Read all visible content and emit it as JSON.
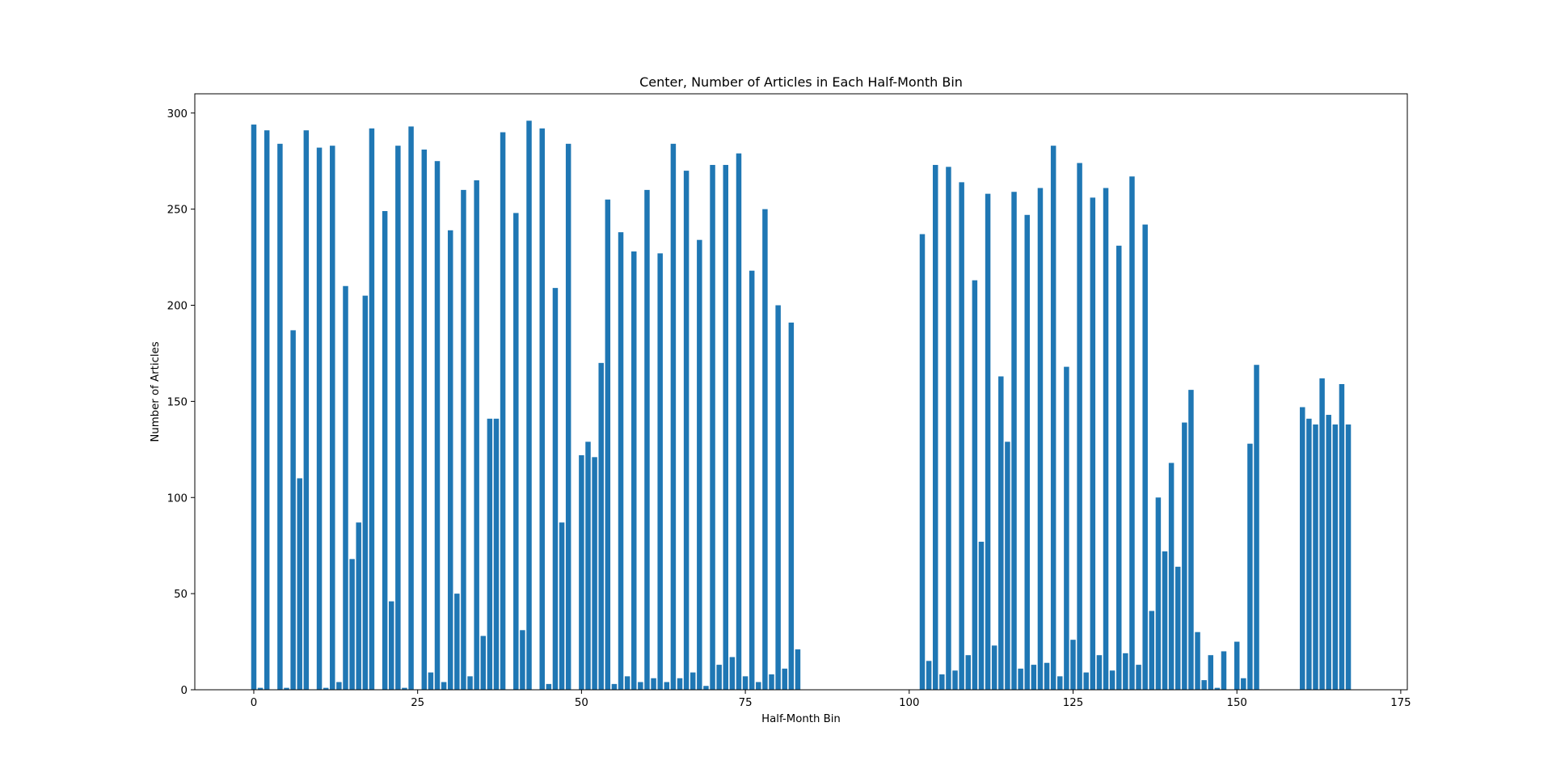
{
  "chart_data": {
    "type": "bar",
    "title": "Center, Number of Articles in Each Half-Month Bin",
    "xlabel": "Half-Month Bin",
    "ylabel": "Number of Articles",
    "xlim": [
      -9,
      176
    ],
    "ylim": [
      0,
      310
    ],
    "xticks": [
      0,
      25,
      50,
      75,
      100,
      125,
      150,
      175
    ],
    "yticks": [
      0,
      50,
      100,
      150,
      200,
      250,
      300
    ],
    "bar_color": "#1f77b4",
    "grid": false,
    "x": [
      0,
      1,
      2,
      3,
      4,
      5,
      6,
      7,
      8,
      9,
      10,
      11,
      12,
      13,
      14,
      15,
      16,
      17,
      18,
      19,
      20,
      21,
      22,
      23,
      24,
      25,
      26,
      27,
      28,
      29,
      30,
      31,
      32,
      33,
      34,
      35,
      36,
      37,
      38,
      39,
      40,
      41,
      42,
      43,
      44,
      45,
      46,
      47,
      48,
      49,
      50,
      51,
      52,
      53,
      54,
      55,
      56,
      57,
      58,
      59,
      60,
      61,
      62,
      63,
      64,
      65,
      66,
      67,
      68,
      69,
      70,
      71,
      72,
      73,
      74,
      75,
      76,
      77,
      78,
      79,
      80,
      81,
      82,
      83,
      102,
      103,
      104,
      105,
      106,
      107,
      108,
      109,
      110,
      111,
      112,
      113,
      114,
      115,
      116,
      117,
      118,
      119,
      120,
      121,
      122,
      123,
      124,
      125,
      126,
      127,
      128,
      129,
      130,
      131,
      132,
      133,
      134,
      135,
      136,
      137,
      138,
      139,
      140,
      141,
      142,
      143,
      144,
      145,
      146,
      147,
      148,
      149,
      150,
      151,
      152,
      153,
      160,
      161,
      162,
      163,
      164,
      165,
      166,
      167
    ],
    "values": [
      294,
      1,
      291,
      0,
      284,
      1,
      187,
      110,
      291,
      0,
      282,
      1,
      283,
      4,
      210,
      68,
      87,
      205,
      292,
      0,
      249,
      46,
      283,
      1,
      293,
      0,
      281,
      9,
      275,
      4,
      239,
      50,
      260,
      7,
      265,
      28,
      141,
      141,
      290,
      0,
      248,
      31,
      296,
      0,
      292,
      3,
      209,
      87,
      284,
      0,
      122,
      129,
      121,
      170,
      255,
      3,
      238,
      7,
      228,
      4,
      260,
      6,
      227,
      4,
      284,
      6,
      270,
      9,
      234,
      2,
      273,
      13,
      273,
      17,
      279,
      7,
      218,
      4,
      250,
      8,
      200,
      11,
      191,
      21,
      237,
      15,
      273,
      8,
      272,
      10,
      264,
      18,
      213,
      77,
      258,
      23,
      163,
      129,
      259,
      11,
      247,
      13,
      261,
      14,
      283,
      7,
      168,
      26,
      274,
      9,
      256,
      18,
      261,
      10,
      231,
      19,
      267,
      13,
      242,
      41,
      100,
      72,
      118,
      64,
      139,
      156,
      30,
      5,
      18,
      1,
      20,
      0,
      25,
      6,
      128,
      169,
      147,
      141,
      138,
      162,
      143,
      138,
      159,
      138
    ]
  }
}
